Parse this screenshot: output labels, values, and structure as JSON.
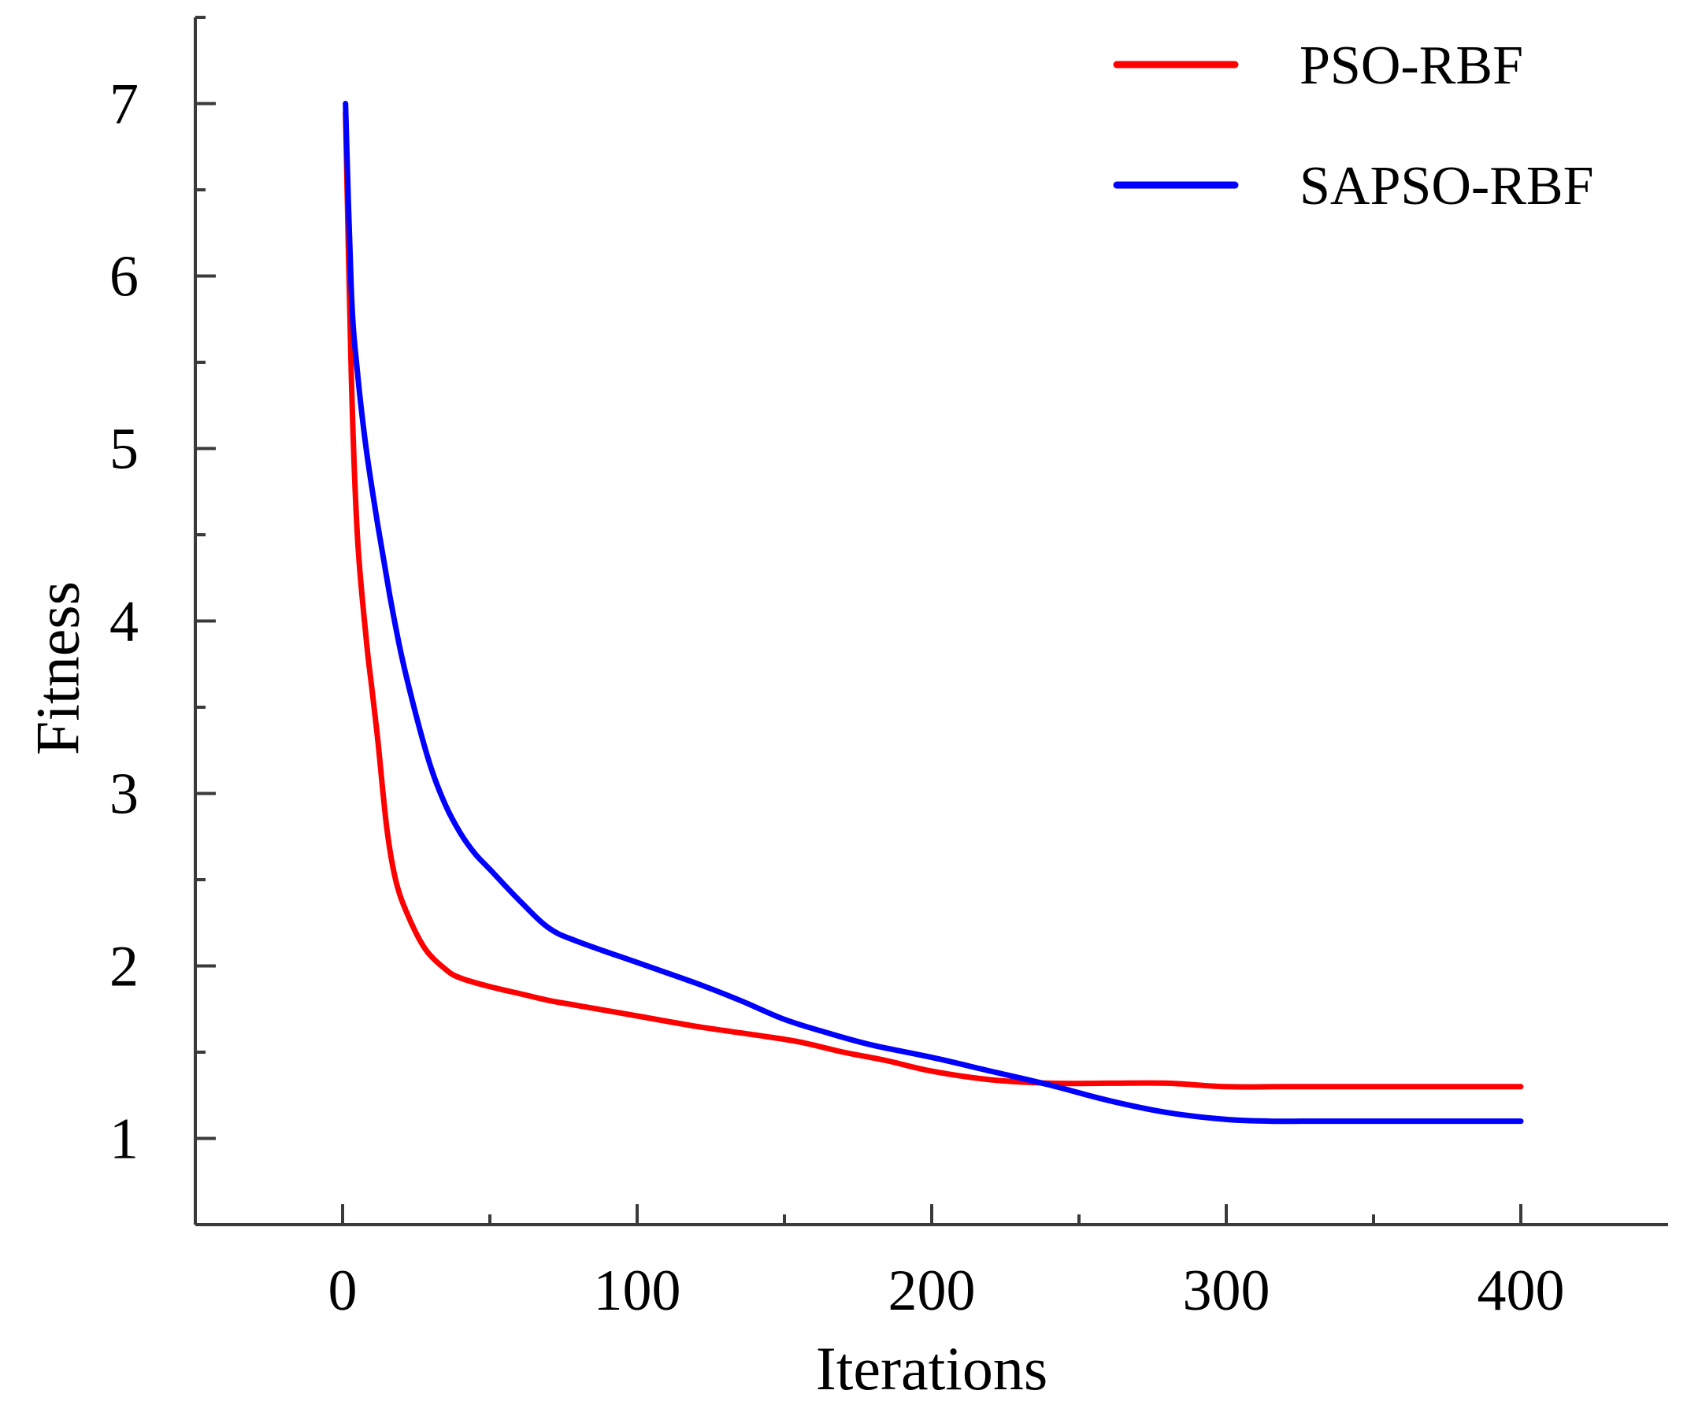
{
  "chart_data": {
    "type": "line",
    "title": "",
    "xlabel": "Iterations",
    "ylabel": "Fitness",
    "xlim": [
      -50,
      450
    ],
    "ylim": [
      0.5,
      7.5
    ],
    "x_ticks": [
      0,
      100,
      200,
      300,
      400
    ],
    "x_tick_labels": [
      "0",
      "100",
      "200",
      "300",
      "400"
    ],
    "x_minor_ticks": [
      50,
      150,
      250,
      350
    ],
    "y_ticks": [
      1,
      2,
      3,
      4,
      5,
      6,
      7
    ],
    "y_tick_labels": [
      "1",
      "2",
      "3",
      "4",
      "5",
      "6",
      "7"
    ],
    "y_minor_ticks": [
      1.5,
      2.5,
      3.5,
      4.5,
      5.5,
      6.5,
      7.5
    ],
    "grid": false,
    "legend_position": "top-right",
    "series": [
      {
        "name": "PSO-RBF",
        "color": "#ff0000",
        "x": [
          1,
          3,
          5,
          8,
          10,
          12,
          15,
          18,
          22,
          28,
          35,
          40,
          50,
          60,
          70,
          80,
          100,
          120,
          140,
          155,
          170,
          185,
          200,
          220,
          240,
          260,
          280,
          300,
          320,
          350,
          380,
          400
        ],
        "y": [
          6.95,
          5.4,
          4.5,
          3.9,
          3.6,
          3.3,
          2.8,
          2.5,
          2.3,
          2.1,
          1.98,
          1.93,
          1.88,
          1.84,
          1.8,
          1.77,
          1.71,
          1.65,
          1.6,
          1.56,
          1.5,
          1.45,
          1.39,
          1.34,
          1.32,
          1.32,
          1.32,
          1.3,
          1.3,
          1.3,
          1.3,
          1.3
        ]
      },
      {
        "name": "SAPSO-RBF",
        "color": "#0000ff",
        "x": [
          1,
          3,
          5,
          8,
          12,
          16,
          20,
          25,
          30,
          35,
          40,
          45,
          50,
          60,
          70,
          80,
          100,
          120,
          135,
          150,
          165,
          180,
          200,
          220,
          240,
          260,
          280,
          300,
          315,
          330,
          360,
          400
        ],
        "y": [
          7.0,
          5.9,
          5.45,
          5.0,
          4.55,
          4.15,
          3.8,
          3.45,
          3.15,
          2.93,
          2.77,
          2.65,
          2.56,
          2.38,
          2.22,
          2.14,
          2.02,
          1.9,
          1.8,
          1.69,
          1.61,
          1.54,
          1.47,
          1.39,
          1.31,
          1.22,
          1.15,
          1.11,
          1.1,
          1.1,
          1.1,
          1.1
        ]
      }
    ]
  }
}
